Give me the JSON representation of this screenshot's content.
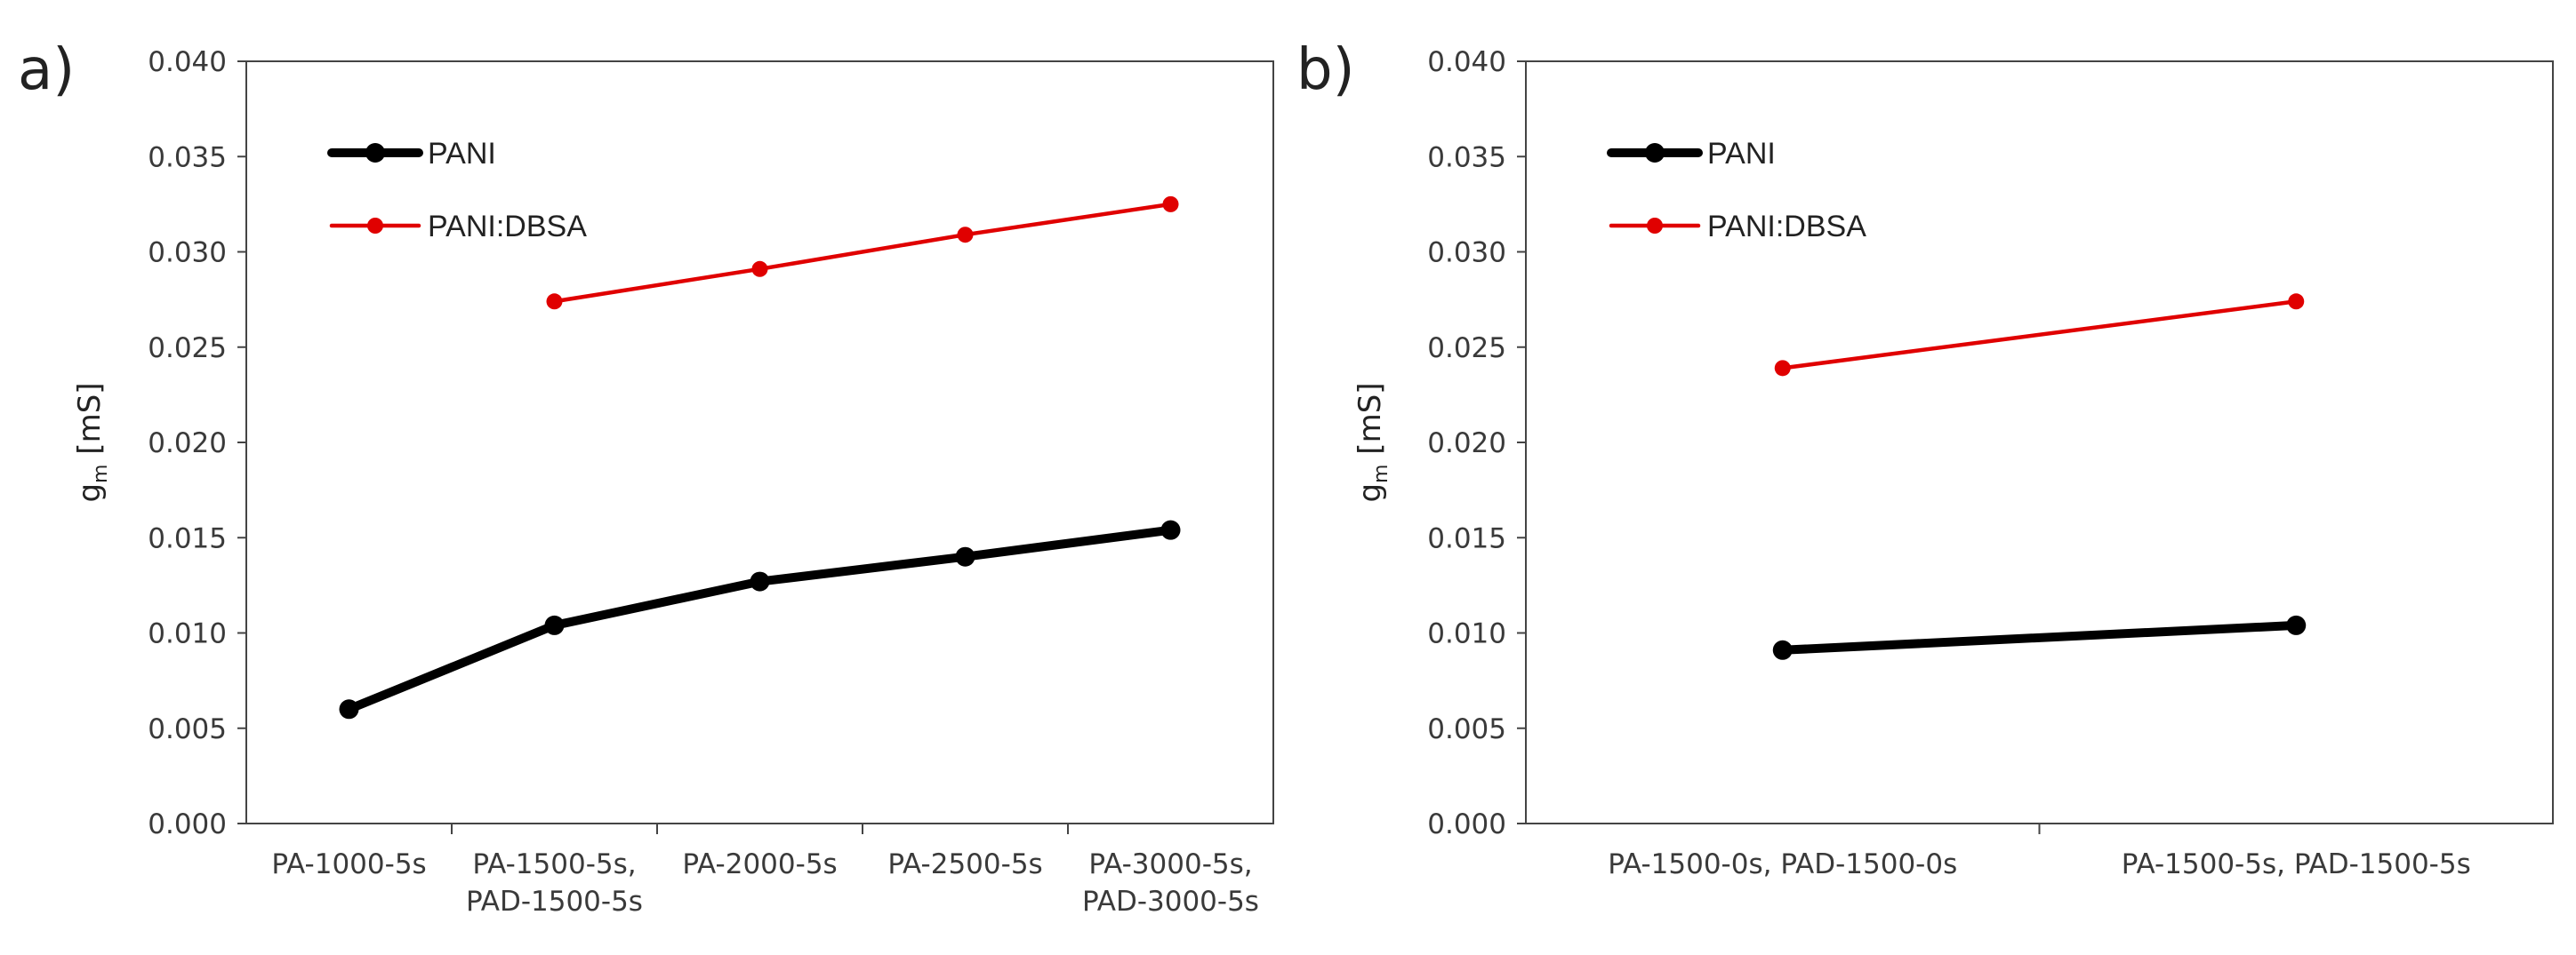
{
  "chart_data": [
    {
      "panel_label": "a)",
      "type": "line",
      "title": "",
      "xlabel": "",
      "ylabel": "g",
      "ylabel_subscript": "m",
      "ylabel_unit": " [mS]",
      "ylim": [
        0,
        0.04
      ],
      "yticks": [
        "0.000",
        "0.005",
        "0.010",
        "0.015",
        "0.020",
        "0.025",
        "0.030",
        "0.035",
        "0.040"
      ],
      "grid": false,
      "legend_position": "top-left",
      "categories": [
        [
          "PA-1000-5s"
        ],
        [
          "PA-1500-5s,",
          "PAD-1500-5s"
        ],
        [
          "PA-2000-5s"
        ],
        [
          "PA-2500-5s"
        ],
        [
          "PA-3000-5s,",
          "PAD-3000-5s"
        ]
      ],
      "series": [
        {
          "name": "PANI",
          "color": "#000000",
          "weight": "thick",
          "values": [
            0.006,
            0.0104,
            0.0127,
            0.014,
            0.0154
          ],
          "x_offset": [
            0,
            0,
            0,
            0,
            0
          ]
        },
        {
          "name": "PANI:DBSA",
          "color": "#e00000",
          "weight": "thin",
          "values": [
            null,
            0.0274,
            0.0291,
            0.0309,
            0.0325
          ]
        }
      ]
    },
    {
      "panel_label": "b)",
      "type": "line",
      "title": "",
      "xlabel": "",
      "ylabel": "g",
      "ylabel_subscript": "m",
      "ylabel_unit": " [mS]",
      "ylim": [
        0,
        0.04
      ],
      "yticks": [
        "0.000",
        "0.005",
        "0.010",
        "0.015",
        "0.020",
        "0.025",
        "0.030",
        "0.035",
        "0.040"
      ],
      "grid": false,
      "legend_position": "top-left",
      "categories": [
        [
          "PA-1500-0s, PAD-1500-0s"
        ],
        [
          "PA-1500-5s, PAD-1500-5s"
        ]
      ],
      "series": [
        {
          "name": "PANI",
          "color": "#000000",
          "weight": "thick",
          "values": [
            0.0091,
            0.0104
          ]
        },
        {
          "name": "PANI:DBSA",
          "color": "#e00000",
          "weight": "thin",
          "values": [
            0.0239,
            0.0274
          ]
        }
      ]
    }
  ]
}
